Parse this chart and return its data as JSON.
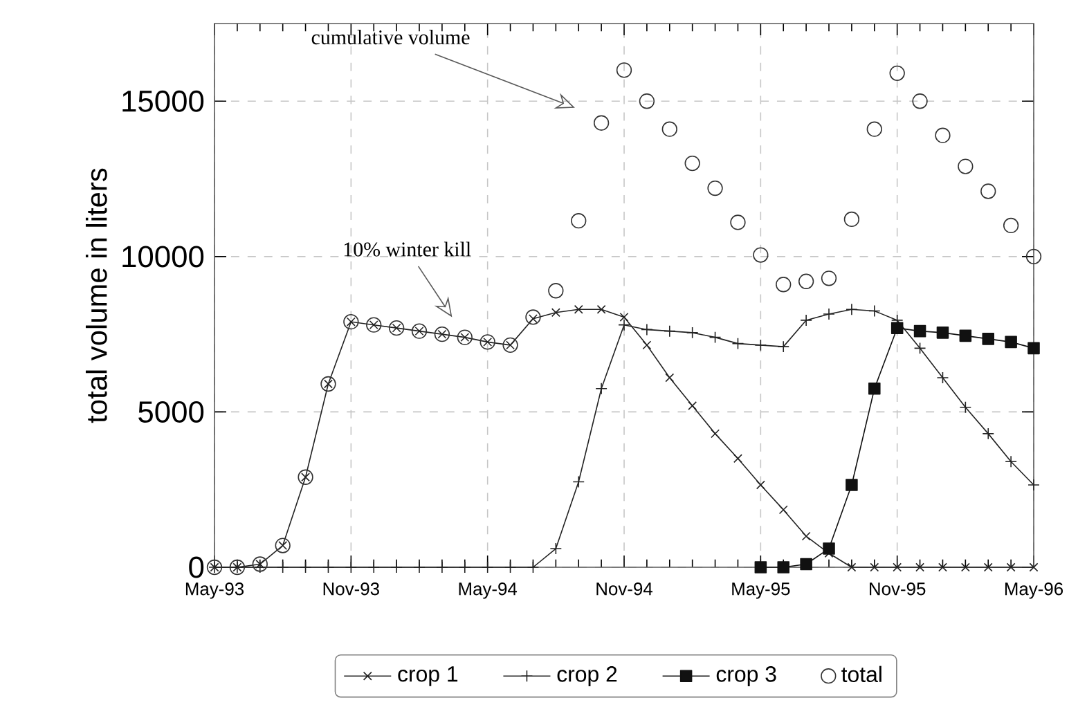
{
  "chart_data": {
    "type": "line",
    "ylabel": "total volume in liters",
    "x": [
      "1993-05",
      "1993-06",
      "1993-07",
      "1993-08",
      "1993-09",
      "1993-10",
      "1993-11",
      "1993-12",
      "1994-01",
      "1994-02",
      "1994-03",
      "1994-04",
      "1994-05",
      "1994-06",
      "1994-07",
      "1994-08",
      "1994-09",
      "1994-10",
      "1994-11",
      "1994-12",
      "1995-01",
      "1995-02",
      "1995-03",
      "1995-04",
      "1995-05",
      "1995-06",
      "1995-07",
      "1995-08",
      "1995-09",
      "1995-10",
      "1995-11",
      "1995-12",
      "1996-01",
      "1996-02",
      "1996-03",
      "1996-04",
      "1996-05"
    ],
    "series": [
      {
        "name": "crop 1",
        "color": "#222222",
        "marker": "cross",
        "values": [
          0,
          0,
          100,
          700,
          2900,
          5900,
          7900,
          7800,
          7700,
          7600,
          7500,
          7400,
          7250,
          7150,
          8000,
          8200,
          8300,
          8300,
          8050,
          7150,
          6100,
          5200,
          4300,
          3500,
          2650,
          1850,
          1000,
          450,
          0,
          0,
          0,
          0,
          0,
          0,
          0,
          0,
          0
        ]
      },
      {
        "name": "crop 2",
        "color": "#222222",
        "marker": "plus",
        "values": [
          0,
          0,
          0,
          0,
          0,
          0,
          0,
          0,
          0,
          0,
          0,
          0,
          0,
          0,
          0,
          600,
          2750,
          5750,
          7800,
          7650,
          7600,
          7550,
          7400,
          7200,
          7150,
          7100,
          7950,
          8150,
          8300,
          8250,
          7950,
          7050,
          6100,
          5150,
          4300,
          3400,
          2650
        ]
      },
      {
        "name": "crop 3",
        "color": "#111111",
        "marker": "square",
        "values": [
          null,
          null,
          null,
          null,
          null,
          null,
          null,
          null,
          null,
          null,
          null,
          null,
          null,
          null,
          null,
          null,
          null,
          null,
          null,
          null,
          null,
          null,
          null,
          null,
          0,
          0,
          100,
          600,
          2650,
          5750,
          7700,
          7600,
          7550,
          7450,
          7350,
          7250,
          7050
        ]
      },
      {
        "name": "total",
        "type": "scatter",
        "color": "#333333",
        "marker": "circle",
        "values": [
          0,
          0,
          100,
          700,
          2900,
          5900,
          7900,
          7800,
          7700,
          7600,
          7500,
          7400,
          7250,
          7150,
          8050,
          8900,
          11150,
          14300,
          16000,
          15000,
          14100,
          13000,
          12200,
          11100,
          10050,
          9100,
          9200,
          9300,
          11200,
          14100,
          15900,
          15000,
          13900,
          12900,
          12100,
          11000,
          10000
        ]
      }
    ],
    "xlim": [
      "1993-05",
      "1996-05"
    ],
    "xticks": [
      {
        "value": "1993-05",
        "label": "May-93"
      },
      {
        "value": "1993-11",
        "label": "Nov-93"
      },
      {
        "value": "1994-05",
        "label": "May-94"
      },
      {
        "value": "1994-11",
        "label": "Nov-94"
      },
      {
        "value": "1995-05",
        "label": "May-95"
      },
      {
        "value": "1995-11",
        "label": "Nov-95"
      },
      {
        "value": "1996-05",
        "label": "May-96"
      }
    ],
    "ylim": [
      0,
      17500
    ],
    "yticks": [
      0,
      5000,
      10000,
      15000
    ],
    "grid": true,
    "legend": "bottom",
    "annotations": [
      "cumulative volume",
      "10% winter kill"
    ]
  }
}
